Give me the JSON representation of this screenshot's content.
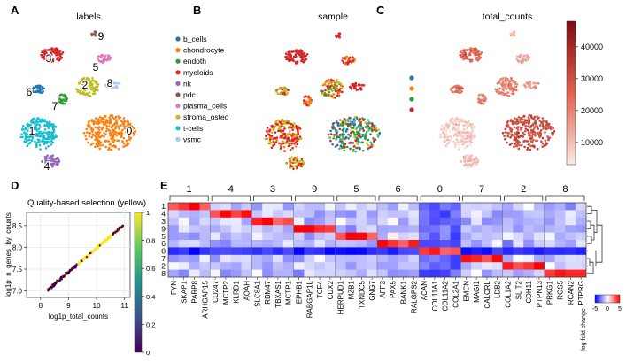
{
  "panels": {
    "A": {
      "letter": "A",
      "title": "labels"
    },
    "B": {
      "letter": "B",
      "title": "sample"
    },
    "C": {
      "letter": "C",
      "title": "total_counts"
    },
    "D": {
      "letter": "D",
      "title": "Quality-based selection (yellow)"
    },
    "E": {
      "letter": "E"
    }
  },
  "colors": {
    "c0": "#ff7f0e",
    "c1": "#17becf",
    "c2": "#bcbd22",
    "c3": "#d62728",
    "c4": "#9467bd",
    "c5": "#e377c2",
    "c6": "#1f77b4",
    "c7": "#2ca02c",
    "c8": "#aec7e8",
    "c9": "#8c564b"
  },
  "chart_data": [
    {
      "type": "scatter",
      "panel": "A",
      "title": "labels",
      "clusters": [
        "0",
        "1",
        "2",
        "3",
        "4",
        "5",
        "6",
        "7",
        "8",
        "9"
      ]
    },
    {
      "type": "scatter",
      "panel": "B",
      "title": "sample",
      "legend": [
        {
          "name": "b_cells",
          "color": "#1f77b4"
        },
        {
          "name": "chondrocyte",
          "color": "#ff7f0e"
        },
        {
          "name": "endoth",
          "color": "#2ca02c"
        },
        {
          "name": "myeloids",
          "color": "#d62728"
        },
        {
          "name": "nk",
          "color": "#9467bd"
        },
        {
          "name": "pdc",
          "color": "#8c564b"
        },
        {
          "name": "plasma_cells",
          "color": "#e377c2"
        },
        {
          "name": "stroma_osteo",
          "color": "#bcbd22"
        },
        {
          "name": "t-cells",
          "color": "#17becf"
        },
        {
          "name": "vsmc",
          "color": "#aec7e8"
        }
      ]
    },
    {
      "type": "scatter",
      "panel": "C",
      "title": "total_counts",
      "legend_dots": [
        "#1f77b4",
        "#ff7f0e",
        "#2ca02c",
        "#d62728"
      ],
      "colorbar": {
        "ticks": [
          "40000",
          "30000",
          "20000",
          "10000"
        ],
        "range": [
          3000,
          48000
        ]
      }
    },
    {
      "type": "scatter",
      "panel": "D",
      "title": "Quality-based selection (yellow)",
      "xlabel": "log1p_total_counts",
      "ylabel": "log1p_n_genes_by_counts",
      "xticks": [
        "8",
        "9",
        "10",
        "11"
      ],
      "yticks": [
        "7.0",
        "7.5",
        "8.0",
        "8.5"
      ],
      "xlim": [
        7.5,
        11.2
      ],
      "ylim": [
        6.85,
        8.8
      ],
      "grid": true,
      "colorbar": {
        "ticks": [
          "1",
          "0.8",
          "0.6",
          "0.4",
          "0.2",
          "0"
        ],
        "range": [
          0,
          1
        ]
      }
    },
    {
      "type": "heatmap",
      "panel": "E",
      "rows": [
        "1",
        "4",
        "3",
        "9",
        "5",
        "6",
        "0",
        "7",
        "2",
        "8"
      ],
      "group_labels": [
        "1",
        "4",
        "3",
        "9",
        "5",
        "6",
        "0",
        "7",
        "2",
        "8"
      ],
      "group_sizes": [
        4,
        4,
        4,
        4,
        4,
        4,
        4,
        4,
        4,
        4
      ],
      "genes": [
        "FYN",
        "SKAP1",
        "PARP8",
        "ARHGAP15",
        "CD247",
        "MCTP2",
        "KLRD1",
        "AOAH",
        "SLC8A1",
        "RBM47",
        "TBXAS1",
        "MCTP1",
        "EPHB1",
        "RABGAP1L",
        "TCF4",
        "CUX2",
        "HERPUD1",
        "MZB1",
        "TXNDC5",
        "GNG7",
        "AFF3",
        "PAX5",
        "BANK1",
        "RALGPS2",
        "ACAN",
        "COL11A1",
        "COL11A2",
        "COL2A1",
        "EMCN",
        "MAGI1",
        "CALCRL",
        "LDB2",
        "COL1A2",
        "SLIT2",
        "CDH11",
        "PTPN13",
        "PRKG1",
        "RGS5",
        "RCAN2",
        "PTPRG"
      ],
      "colorbar": {
        "label": "log fold change",
        "ticks": [
          "-5",
          "0",
          "5"
        ],
        "range": [
          -5,
          5
        ]
      }
    }
  ]
}
